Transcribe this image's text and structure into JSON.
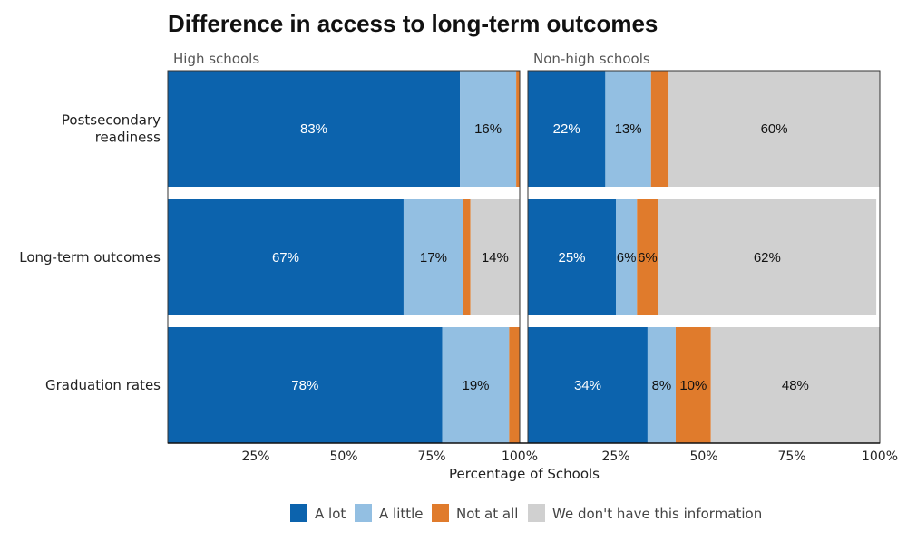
{
  "chart_data": {
    "type": "bar",
    "orientation": "horizontal",
    "stacked": true,
    "title": "Difference in access to long-term outcomes",
    "xlabel": "Percentage of Schools",
    "ylabel": "",
    "xlim": [
      0,
      100
    ],
    "x_ticks": [
      "25%",
      "50%",
      "75%",
      "100%"
    ],
    "categories": [
      "Postsecondary\nreadiness",
      "Long-term outcomes",
      "Graduation rates"
    ],
    "facets": [
      {
        "name": "High schools",
        "series": [
          {
            "name": "A lot",
            "color": "#0c63ad",
            "values": [
              83,
              67,
              78
            ],
            "labels": [
              "83%",
              "67%",
              "78%"
            ]
          },
          {
            "name": "A little",
            "color": "#93bfe2",
            "values": [
              16,
              17,
              19
            ],
            "labels": [
              "16%",
              "17%",
              "19%"
            ]
          },
          {
            "name": "Not at all",
            "color": "#e07b2c",
            "values": [
              1,
              2,
              3
            ],
            "labels": [
              "",
              "",
              ""
            ]
          },
          {
            "name": "We don't have this information",
            "color": "#d0d0d0",
            "values": [
              0,
              14,
              0
            ],
            "labels": [
              "",
              "14%",
              ""
            ]
          }
        ]
      },
      {
        "name": "Non-high schools",
        "series": [
          {
            "name": "A lot",
            "color": "#0c63ad",
            "values": [
              22,
              25,
              34
            ],
            "labels": [
              "22%",
              "25%",
              "34%"
            ]
          },
          {
            "name": "A little",
            "color": "#93bfe2",
            "values": [
              13,
              6,
              8
            ],
            "labels": [
              "13%",
              "6%",
              "8%"
            ]
          },
          {
            "name": "Not at all",
            "color": "#e07b2c",
            "values": [
              5,
              6,
              10
            ],
            "labels": [
              "",
              "6%",
              "10%"
            ]
          },
          {
            "name": "We don't have this information",
            "color": "#d0d0d0",
            "values": [
              60,
              62,
              48
            ],
            "labels": [
              "60%",
              "62%",
              "48%"
            ]
          }
        ]
      }
    ],
    "legend": {
      "position": "bottom",
      "entries": [
        "A lot",
        "A little",
        "Not at all",
        "We don't have this information"
      ]
    },
    "grid": false
  }
}
